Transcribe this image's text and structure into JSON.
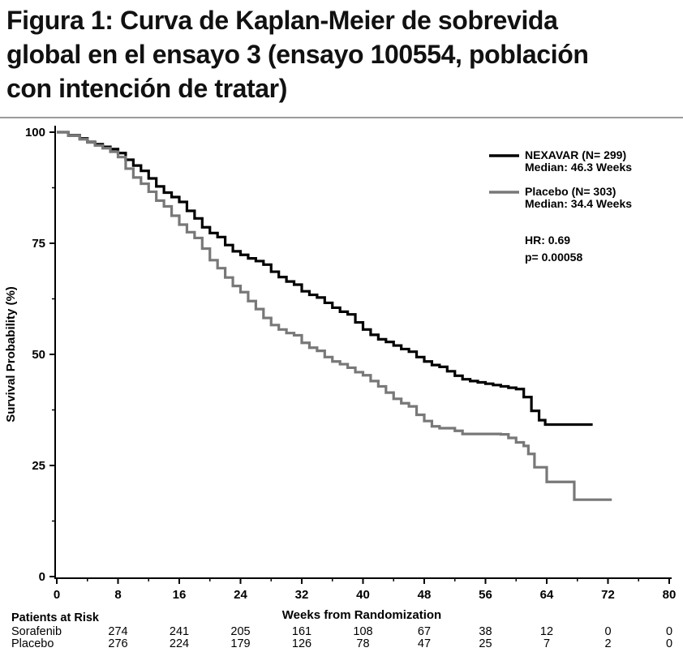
{
  "figure": {
    "title_lines": [
      "Figura 1: Curva de Kaplan-Meier de sobrevida",
      "global en el ensayo 3 (ensayo 100554, población",
      "con intención de tratar)"
    ]
  },
  "chart_data": {
    "type": "line",
    "subtype": "kaplan-meier-step",
    "title": "Figura 1: Curva de Kaplan-Meier de sobrevida global en el ensayo 3 (ensayo 100554, población con intención de tratar)",
    "xlabel": "Weeks from Randomization",
    "ylabel": "Survival Probability (%)",
    "xlim": [
      0,
      80
    ],
    "ylim": [
      0,
      100
    ],
    "x_ticks": [
      0,
      8,
      16,
      24,
      32,
      40,
      48,
      56,
      64,
      72,
      80
    ],
    "x_minor_ticks": [
      4,
      12,
      20,
      28,
      36,
      44,
      52,
      60,
      68,
      76
    ],
    "y_ticks": [
      0,
      25,
      50,
      75,
      100
    ],
    "y_minor_ticks": [
      12.5,
      37.5,
      62.5,
      87.5
    ],
    "grid": "off",
    "legend_position": "upper-right",
    "annotations": [
      "HR:  0.69",
      "p= 0.00058"
    ],
    "series": [
      {
        "name": "nexavar",
        "label": "NEXAVAR  (N= 299)",
        "median_label": "Median:  46.3  Weeks",
        "color": "#000000",
        "points": [
          [
            0,
            100
          ],
          [
            1.5,
            99.3
          ],
          [
            3,
            98.6
          ],
          [
            4,
            97.8
          ],
          [
            5,
            97.3
          ],
          [
            6,
            96.7
          ],
          [
            7,
            96.2
          ],
          [
            8,
            95.3
          ],
          [
            9,
            93.8
          ],
          [
            10,
            92.5
          ],
          [
            11,
            91.3
          ],
          [
            12,
            89.6
          ],
          [
            13,
            87.8
          ],
          [
            14,
            86.4
          ],
          [
            15,
            85.4
          ],
          [
            16,
            84.3
          ],
          [
            17,
            82.3
          ],
          [
            18,
            80.6
          ],
          [
            19,
            78.6
          ],
          [
            20,
            77.3
          ],
          [
            21,
            76.4
          ],
          [
            22,
            74.6
          ],
          [
            23,
            73.2
          ],
          [
            24,
            72.4
          ],
          [
            25,
            71.6
          ],
          [
            26,
            71.0
          ],
          [
            27,
            70.2
          ],
          [
            28,
            68.6
          ],
          [
            29,
            67.4
          ],
          [
            30,
            66.4
          ],
          [
            31,
            65.7
          ],
          [
            32,
            64.2
          ],
          [
            33,
            63.4
          ],
          [
            34,
            62.8
          ],
          [
            35,
            61.6
          ],
          [
            36,
            60.5
          ],
          [
            37,
            59.6
          ],
          [
            38,
            59.0
          ],
          [
            39,
            57.2
          ],
          [
            40,
            55.6
          ],
          [
            41,
            54.4
          ],
          [
            42,
            53.4
          ],
          [
            43,
            52.8
          ],
          [
            44,
            52.0
          ],
          [
            45,
            51.2
          ],
          [
            46,
            50.6
          ],
          [
            47,
            49.4
          ],
          [
            48,
            48.4
          ],
          [
            49,
            47.6
          ],
          [
            50,
            47.2
          ],
          [
            51,
            46.2
          ],
          [
            52,
            45.2
          ],
          [
            53,
            44.4
          ],
          [
            54,
            44.0
          ],
          [
            55,
            43.7
          ],
          [
            56,
            43.4
          ],
          [
            57,
            43.1
          ],
          [
            58,
            42.8
          ],
          [
            59,
            42.5
          ],
          [
            60,
            42.2
          ],
          [
            61,
            40.4
          ],
          [
            62,
            37.3
          ],
          [
            63,
            35.2
          ],
          [
            63.8,
            34.2
          ],
          [
            70,
            34.2
          ]
        ]
      },
      {
        "name": "placebo",
        "label": "Placebo  (N= 303)",
        "median_label": "Median:  34.4  Weeks",
        "color": "#787878",
        "points": [
          [
            0,
            100
          ],
          [
            1.5,
            99.2
          ],
          [
            3,
            98.4
          ],
          [
            4,
            97.7
          ],
          [
            5,
            97.0
          ],
          [
            6,
            96.4
          ],
          [
            7,
            95.6
          ],
          [
            8,
            94.4
          ],
          [
            9,
            91.8
          ],
          [
            10,
            89.8
          ],
          [
            11,
            88.4
          ],
          [
            12,
            86.6
          ],
          [
            13,
            84.6
          ],
          [
            14,
            83.3
          ],
          [
            15,
            81.2
          ],
          [
            16,
            79.2
          ],
          [
            17,
            77.5
          ],
          [
            18,
            76.2
          ],
          [
            19,
            73.8
          ],
          [
            20,
            71.2
          ],
          [
            21,
            69.4
          ],
          [
            22,
            67.3
          ],
          [
            23,
            65.4
          ],
          [
            24,
            64.0
          ],
          [
            25,
            62.0
          ],
          [
            26,
            60.2
          ],
          [
            27,
            58.2
          ],
          [
            28,
            56.6
          ],
          [
            29,
            55.6
          ],
          [
            30,
            54.8
          ],
          [
            31,
            54.3
          ],
          [
            32,
            52.6
          ],
          [
            33,
            51.5
          ],
          [
            34,
            50.8
          ],
          [
            35,
            49.4
          ],
          [
            36,
            48.4
          ],
          [
            37,
            47.8
          ],
          [
            38,
            47.0
          ],
          [
            39,
            46.0
          ],
          [
            40,
            45.3
          ],
          [
            41,
            44.0
          ],
          [
            42,
            42.8
          ],
          [
            43,
            41.4
          ],
          [
            44,
            40.0
          ],
          [
            45,
            39.0
          ],
          [
            46,
            38.3
          ],
          [
            47,
            36.4
          ],
          [
            48,
            35.0
          ],
          [
            49,
            33.8
          ],
          [
            50,
            33.4
          ],
          [
            52,
            32.8
          ],
          [
            53,
            32.1
          ],
          [
            58,
            32.0
          ],
          [
            59,
            31.2
          ],
          [
            60,
            30.2
          ],
          [
            61,
            29.4
          ],
          [
            61.6,
            27.6
          ],
          [
            62.4,
            24.6
          ],
          [
            64,
            21.3
          ],
          [
            67.6,
            17.3
          ],
          [
            72.5,
            17.3
          ]
        ]
      }
    ]
  },
  "risk_table": {
    "header": "Patients at Risk",
    "weeks": [
      8,
      16,
      24,
      32,
      40,
      48,
      56,
      64,
      72,
      80
    ],
    "rows": [
      {
        "label": "Sorafenib",
        "values": [
          "274",
          "241",
          "205",
          "161",
          "108",
          "67",
          "38",
          "12",
          "0",
          "0"
        ]
      },
      {
        "label": "Placebo",
        "values": [
          "276",
          "224",
          "179",
          "126",
          "78",
          "47",
          "25",
          "7",
          "2",
          "0"
        ]
      }
    ]
  },
  "colors": {
    "nexavar_line": "#000000",
    "placebo_line": "#787878",
    "axis": "#000000",
    "title_rule": "#9a9a9a",
    "background": "#ffffff"
  }
}
